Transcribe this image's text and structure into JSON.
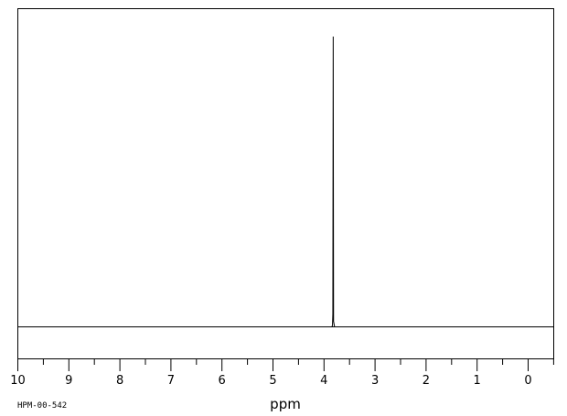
{
  "chart_data": {
    "type": "line",
    "title": "",
    "xlabel": "ppm",
    "ylabel": "",
    "xlim": [
      10,
      0
    ],
    "x_reversed": true,
    "grid": false,
    "ticks": [
      10,
      9,
      8,
      7,
      6,
      5,
      4,
      3,
      2,
      1,
      0
    ],
    "tick_labels": [
      "10",
      "9",
      "8",
      "7",
      "6",
      "5",
      "4",
      "3",
      "2",
      "1",
      "0"
    ],
    "series": [
      {
        "peaks": [
          {
            "ppm": 3.82,
            "relative_intensity": 1.0
          }
        ]
      }
    ]
  },
  "footer": {
    "code": "HPM-00-542"
  }
}
